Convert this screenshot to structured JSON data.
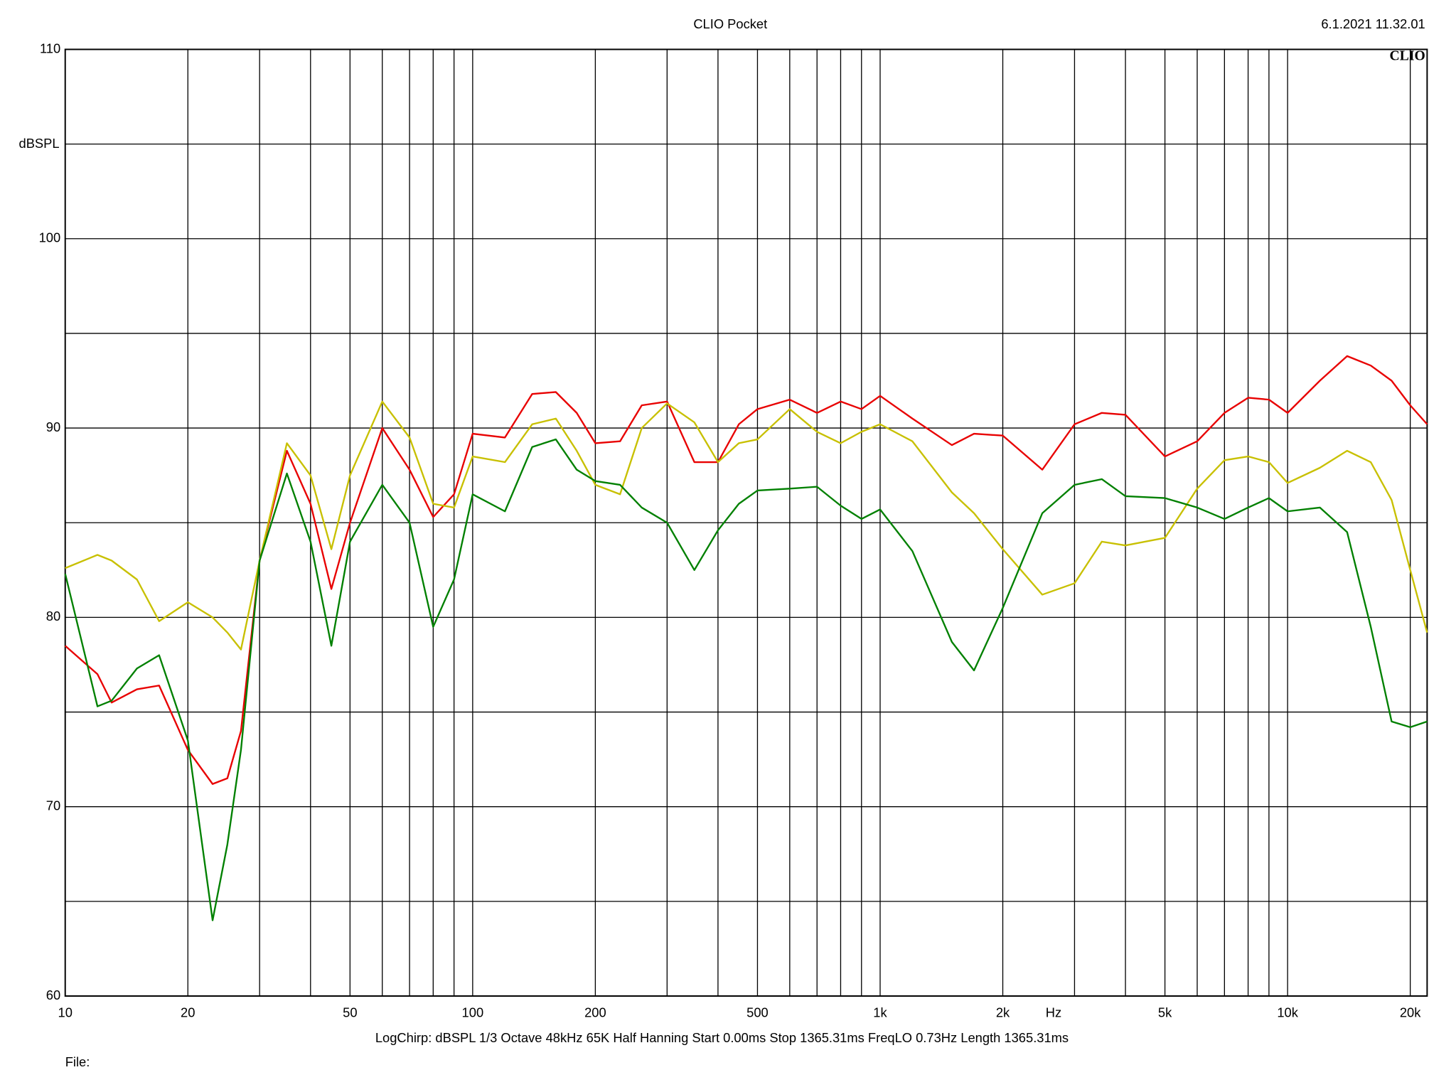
{
  "chart_data": {
    "type": "line",
    "title": "CLIO Pocket",
    "timestamp": "6.1.2021 11.32.01",
    "logo": "CLIO",
    "y_label": "dBSPL",
    "x_label": "Hz",
    "footer": "LogChirp:  dBSPL   1/3 Octave   48kHz   65K   Half Hanning   Start 0.00ms    Stop 1365.31ms    FreqLO 0.73Hz    Length 1365.31ms",
    "file_label": "File:",
    "x_log": true,
    "grid": true,
    "xlim": [
      10,
      22000
    ],
    "ylim": [
      60,
      110
    ],
    "xticks": [
      10,
      20,
      50,
      100,
      200,
      500,
      {
        "value": 1000,
        "label": "1k"
      },
      {
        "value": 2000,
        "label": "2k"
      },
      {
        "value": 5000,
        "label": "5k"
      },
      {
        "value": 10000,
        "label": "10k"
      },
      {
        "value": 20000,
        "label": "20k"
      }
    ],
    "x_minor_ticks": [
      30,
      40,
      60,
      70,
      80,
      90,
      300,
      400,
      600,
      700,
      800,
      900,
      3000,
      4000,
      6000,
      7000,
      8000,
      9000
    ],
    "yticks": [
      60,
      70,
      80,
      90,
      100,
      110
    ],
    "y_minor_ticks": [
      65,
      75,
      85,
      95,
      105
    ],
    "x": [
      10,
      12,
      13,
      15,
      17,
      20,
      23,
      25,
      27,
      30,
      35,
      40,
      45,
      50,
      60,
      70,
      80,
      90,
      100,
      120,
      140,
      160,
      180,
      200,
      230,
      260,
      300,
      350,
      400,
      450,
      500,
      600,
      700,
      800,
      900,
      1000,
      1200,
      1500,
      1700,
      2000,
      2500,
      3000,
      3500,
      4000,
      5000,
      6000,
      7000,
      8000,
      9000,
      10000,
      12000,
      14000,
      16000,
      18000,
      20000,
      22000
    ],
    "series": [
      {
        "color": "#e80000",
        "values": [
          78.5,
          77,
          75.5,
          76.2,
          76.4,
          73,
          71.2,
          71.5,
          74,
          83,
          88.8,
          86,
          81.5,
          85,
          90,
          87.8,
          85.3,
          86.5,
          89.7,
          89.5,
          91.8,
          91.9,
          90.8,
          89.2,
          89.3,
          91.2,
          91.4,
          88.2,
          88.2,
          90.2,
          91,
          91.5,
          90.8,
          91.4,
          91,
          91.7,
          90.5,
          89.1,
          89.7,
          89.6,
          87.8,
          90.2,
          90.8,
          90.7,
          88.5,
          89.3,
          90.8,
          91.6,
          91.5,
          90.8,
          92.5,
          93.8,
          93.3,
          92.5,
          91.2,
          90.2
        ]
      },
      {
        "color": "#c8c000",
        "values": [
          82.6,
          83.3,
          83,
          82,
          79.8,
          80.8,
          80,
          79.2,
          78.3,
          83,
          89.2,
          87.5,
          83.6,
          87.5,
          91.4,
          89.5,
          86,
          85.8,
          88.5,
          88.2,
          90.2,
          90.5,
          88.8,
          87,
          86.5,
          90,
          91.3,
          90.3,
          88.2,
          89.2,
          89.4,
          91,
          89.8,
          89.2,
          89.8,
          90.2,
          89.3,
          86.6,
          85.5,
          83.6,
          81.2,
          81.8,
          84,
          83.8,
          84.2,
          86.8,
          88.3,
          88.5,
          88.2,
          87.1,
          87.9,
          88.8,
          88.2,
          86.2,
          82.5,
          79.2
        ]
      },
      {
        "color": "#008000",
        "values": [
          82.3,
          75.3,
          75.6,
          77.3,
          78,
          73.5,
          64,
          68,
          73,
          83,
          87.6,
          84,
          78.5,
          84,
          87,
          85,
          79.5,
          82,
          86.5,
          85.6,
          89,
          89.4,
          87.8,
          87.2,
          87,
          85.8,
          85,
          82.5,
          84.6,
          86,
          86.7,
          86.8,
          86.9,
          85.9,
          85.2,
          85.7,
          83.5,
          78.7,
          77.2,
          80.5,
          85.5,
          87,
          87.3,
          86.4,
          86.3,
          85.8,
          85.2,
          85.8,
          86.3,
          85.6,
          85.8,
          84.5,
          79.5,
          74.5,
          74.2,
          74.5
        ]
      }
    ]
  }
}
